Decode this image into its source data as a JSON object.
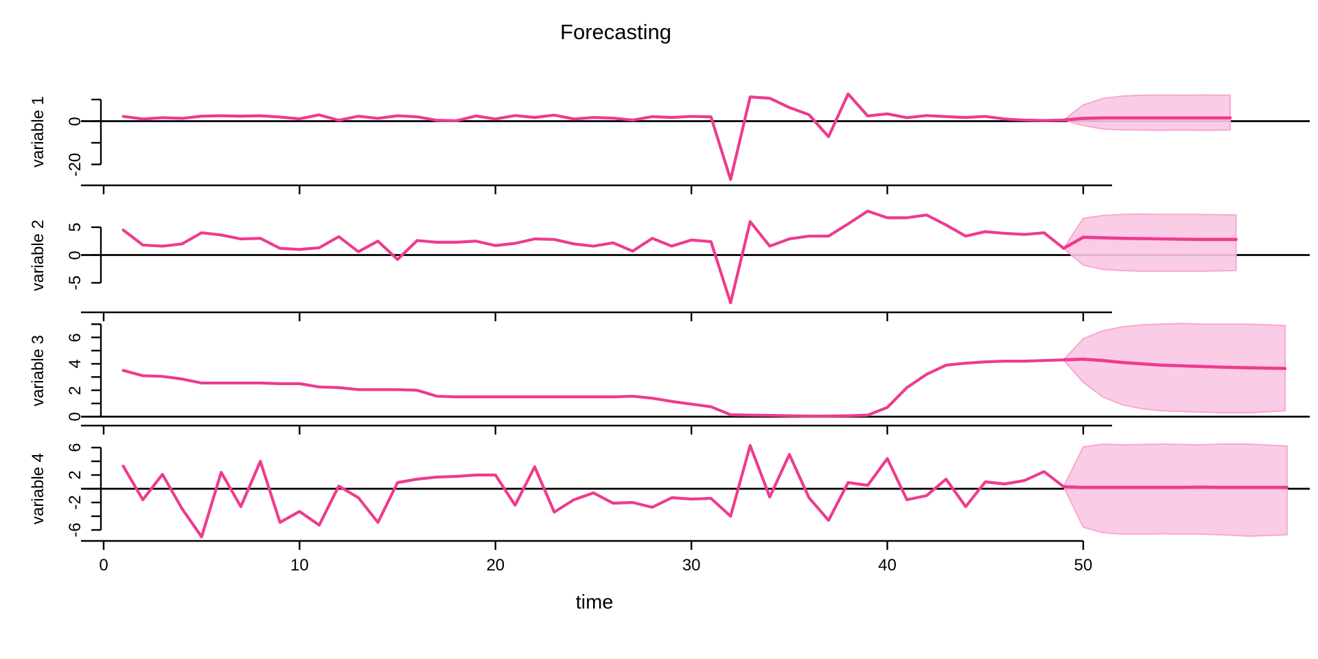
{
  "title": "Forecasting",
  "colors": {
    "series_line": "#EE3B8D",
    "band_fill": "#FBC7E3",
    "band_edge": "#F6A8D2",
    "axis": "#000000",
    "background": "#FFFFFF"
  },
  "chart_data": {
    "type": "line",
    "title": "Forecasting",
    "xlabel": "time",
    "x_ticks": [
      0,
      10,
      20,
      30,
      40,
      50
    ],
    "x_range": [
      0,
      60.5
    ],
    "legend": "none",
    "grid": "off",
    "panels": [
      {
        "ylabel": "variable 1",
        "ylim": [
          -28,
          14
        ],
        "y_ticks": [
          10,
          0,
          -10,
          -20
        ],
        "y_tick_labels": [
          "",
          "0",
          "",
          "-20"
        ],
        "zero_line": 0,
        "observed_t_start": 1,
        "observed": [
          2.2,
          1.0,
          1.6,
          1.3,
          2.3,
          2.5,
          2.3,
          2.5,
          1.9,
          1.1,
          2.9,
          0.4,
          2.3,
          1.3,
          2.5,
          2.0,
          0.4,
          0.2,
          2.4,
          1.0,
          2.6,
          1.7,
          2.8,
          1.0,
          1.7,
          1.4,
          0.5,
          2.1,
          1.7,
          2.2,
          2.0,
          -27.0,
          11.2,
          10.6,
          6.3,
          3.0,
          -7.2,
          12.6,
          2.4,
          3.4,
          1.6,
          2.6,
          2.1,
          1.7,
          2.2,
          1.0,
          0.5,
          0.3,
          0.5
        ],
        "forecast": {
          "t": [
            49,
            50,
            51,
            52,
            53,
            54,
            55,
            56,
            57.5
          ],
          "mean": [
            0.5,
            1.3,
            1.5,
            1.5,
            1.5,
            1.5,
            1.5,
            1.5,
            1.5
          ],
          "lower": [
            0.5,
            -2.0,
            -3.6,
            -4.0,
            -4.1,
            -4.2,
            -4.1,
            -4.2,
            -4.1
          ],
          "upper": [
            0.5,
            7.5,
            10.5,
            11.6,
            12.0,
            12.1,
            12.0,
            12.1,
            12.0
          ]
        }
      },
      {
        "ylabel": "variable 2",
        "ylim": [
          -9,
          8.5
        ],
        "y_ticks": [
          5,
          0,
          -5
        ],
        "y_tick_labels": [
          "5",
          "0",
          "-5"
        ],
        "zero_line": 0,
        "observed_t_start": 1,
        "observed": [
          4.5,
          1.8,
          1.6,
          2.0,
          4.0,
          3.6,
          2.9,
          3.0,
          1.2,
          1.0,
          1.3,
          3.3,
          0.6,
          2.5,
          -0.8,
          2.6,
          2.3,
          2.3,
          2.5,
          1.7,
          2.1,
          2.9,
          2.8,
          2.0,
          1.6,
          2.2,
          0.7,
          3.0,
          1.6,
          2.7,
          2.4,
          -8.6,
          6.0,
          1.6,
          2.9,
          3.4,
          3.4,
          5.6,
          7.9,
          6.7,
          6.7,
          7.2,
          5.4,
          3.4,
          4.2,
          3.9,
          3.7,
          4.0,
          1.2
        ],
        "forecast": {
          "t": [
            49,
            50,
            51,
            52,
            53,
            54,
            55,
            56,
            57.8
          ],
          "mean": [
            1.2,
            3.2,
            3.1,
            3.0,
            2.95,
            2.9,
            2.85,
            2.8,
            2.8
          ],
          "lower": [
            1.2,
            -1.8,
            -2.6,
            -2.8,
            -2.9,
            -2.9,
            -2.9,
            -2.9,
            -2.8
          ],
          "upper": [
            1.2,
            6.6,
            7.1,
            7.3,
            7.35,
            7.3,
            7.3,
            7.3,
            7.2
          ]
        }
      },
      {
        "ylabel": "variable 3",
        "ylim": [
          -0.2,
          7.3
        ],
        "y_ticks": [
          7,
          6,
          5,
          4,
          3,
          2,
          1,
          0
        ],
        "y_tick_labels": [
          "",
          "6",
          "",
          "4",
          "",
          "2",
          "",
          "0"
        ],
        "zero_line": 0,
        "observed_t_start": 1,
        "observed": [
          3.5,
          3.1,
          3.05,
          2.85,
          2.55,
          2.55,
          2.55,
          2.55,
          2.5,
          2.5,
          2.25,
          2.2,
          2.05,
          2.05,
          2.05,
          2.0,
          1.55,
          1.5,
          1.5,
          1.5,
          1.5,
          1.5,
          1.5,
          1.5,
          1.5,
          1.5,
          1.55,
          1.4,
          1.15,
          0.95,
          0.75,
          0.15,
          0.12,
          0.1,
          0.07,
          0.05,
          0.05,
          0.07,
          0.12,
          0.7,
          2.2,
          3.2,
          3.9,
          4.05,
          4.15,
          4.2,
          4.2,
          4.25,
          4.3
        ],
        "forecast": {
          "t": [
            49,
            50,
            51,
            52,
            53,
            54,
            55,
            56,
            57,
            58.5,
            60.3
          ],
          "mean": [
            4.3,
            4.35,
            4.25,
            4.1,
            4.0,
            3.9,
            3.85,
            3.8,
            3.75,
            3.7,
            3.65
          ],
          "lower": [
            4.3,
            2.6,
            1.5,
            0.9,
            0.6,
            0.45,
            0.4,
            0.35,
            0.3,
            0.3,
            0.45
          ],
          "upper": [
            4.3,
            5.9,
            6.5,
            6.8,
            6.95,
            7.0,
            7.05,
            7.0,
            7.0,
            7.0,
            6.9
          ]
        }
      },
      {
        "ylabel": "variable 4",
        "ylim": [
          -7.5,
          7
        ],
        "y_ticks": [
          6,
          4,
          2,
          0,
          -2,
          -4,
          -6
        ],
        "y_tick_labels": [
          "6",
          "",
          "2",
          "",
          "-2",
          "",
          "-6"
        ],
        "zero_line": 0,
        "observed_t_start": 1,
        "observed": [
          3.3,
          -1.6,
          2.1,
          -2.9,
          -7.0,
          2.4,
          -2.6,
          4.0,
          -4.9,
          -3.3,
          -5.3,
          0.4,
          -1.3,
          -4.9,
          0.9,
          1.4,
          1.7,
          1.8,
          2.0,
          2.0,
          -2.4,
          3.2,
          -3.4,
          -1.6,
          -0.6,
          -2.1,
          -2.0,
          -2.7,
          -1.3,
          -1.5,
          -1.4,
          -4.0,
          6.3,
          -1.2,
          5.0,
          -1.3,
          -4.6,
          0.9,
          0.5,
          4.4,
          -1.6,
          -1.0,
          1.4,
          -2.6,
          1.0,
          0.7,
          1.2,
          2.5,
          0.3
        ],
        "forecast": {
          "t": [
            49,
            50,
            51,
            52,
            53,
            54,
            55,
            56,
            57,
            58.5,
            60.4
          ],
          "mean": [
            0.3,
            0.2,
            0.2,
            0.2,
            0.2,
            0.2,
            0.2,
            0.25,
            0.2,
            0.2,
            0.2
          ],
          "lower": [
            0.3,
            -5.6,
            -6.4,
            -6.6,
            -6.6,
            -6.55,
            -6.6,
            -6.6,
            -6.7,
            -6.9,
            -6.7
          ],
          "upper": [
            0.3,
            6.1,
            6.5,
            6.4,
            6.45,
            6.5,
            6.45,
            6.4,
            6.5,
            6.5,
            6.2
          ]
        }
      }
    ]
  }
}
